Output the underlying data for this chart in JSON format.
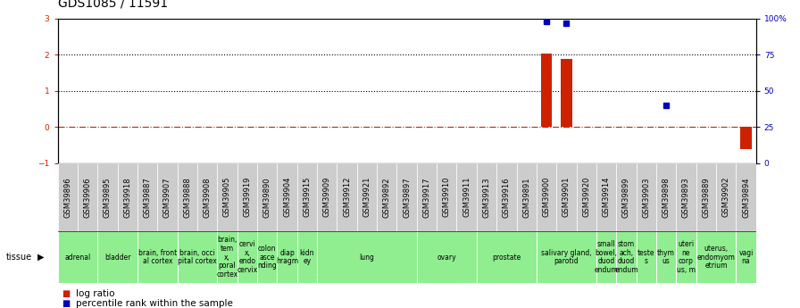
{
  "title": "GDS1085 / 11591",
  "samples": [
    "GSM39896",
    "GSM39906",
    "GSM39895",
    "GSM39918",
    "GSM39887",
    "GSM39907",
    "GSM39888",
    "GSM39908",
    "GSM39905",
    "GSM39919",
    "GSM39890",
    "GSM39904",
    "GSM39915",
    "GSM39909",
    "GSM39912",
    "GSM39921",
    "GSM39892",
    "GSM39897",
    "GSM39917",
    "GSM39910",
    "GSM39911",
    "GSM39913",
    "GSM39916",
    "GSM39891",
    "GSM39900",
    "GSM39901",
    "GSM39920",
    "GSM39914",
    "GSM39899",
    "GSM39903",
    "GSM39898",
    "GSM39893",
    "GSM39889",
    "GSM39902",
    "GSM39894"
  ],
  "log_ratio": {
    "GSM39900": 2.02,
    "GSM39901": 1.88,
    "GSM39894": -0.62
  },
  "percentile_rank": {
    "GSM39900": 98,
    "GSM39901": 97,
    "GSM39898": 40
  },
  "tissues": [
    {
      "label": "adrenal",
      "samples": [
        "GSM39896",
        "GSM39906"
      ]
    },
    {
      "label": "bladder",
      "samples": [
        "GSM39895",
        "GSM39918"
      ]
    },
    {
      "label": "brain, front\nal cortex",
      "samples": [
        "GSM39887",
        "GSM39907"
      ]
    },
    {
      "label": "brain, occi\npital cortex",
      "samples": [
        "GSM39888",
        "GSM39908"
      ]
    },
    {
      "label": "brain,\ntem\nx,\nporal\ncortex",
      "samples": [
        "GSM39905"
      ]
    },
    {
      "label": "cervi\nx,\nendo\ncervix",
      "samples": [
        "GSM39919"
      ]
    },
    {
      "label": "colon\nasce\nnding",
      "samples": [
        "GSM39890"
      ]
    },
    {
      "label": "diap\nhragm",
      "samples": [
        "GSM39904"
      ]
    },
    {
      "label": "kidn\ney",
      "samples": [
        "GSM39915"
      ]
    },
    {
      "label": "lung",
      "samples": [
        "GSM39909",
        "GSM39912",
        "GSM39921",
        "GSM39892",
        "GSM39897"
      ]
    },
    {
      "label": "ovary",
      "samples": [
        "GSM39917",
        "GSM39910",
        "GSM39911"
      ]
    },
    {
      "label": "prostate",
      "samples": [
        "GSM39913",
        "GSM39916",
        "GSM39891"
      ]
    },
    {
      "label": "salivary gland,\nparotid",
      "samples": [
        "GSM39900",
        "GSM39901",
        "GSM39920"
      ]
    },
    {
      "label": "small\nbowel,\nduod\nendum",
      "samples": [
        "GSM39914"
      ]
    },
    {
      "label": "stom\nach,\nduod\nendum",
      "samples": [
        "GSM39899"
      ]
    },
    {
      "label": "teste\ns",
      "samples": [
        "GSM39903"
      ]
    },
    {
      "label": "thym\nus",
      "samples": [
        "GSM39898"
      ]
    },
    {
      "label": "uteri\nne\ncorp\nus, m",
      "samples": [
        "GSM39893"
      ]
    },
    {
      "label": "uterus,\nendomyom\netrium",
      "samples": [
        "GSM39889",
        "GSM39902"
      ]
    },
    {
      "label": "vagi\nna",
      "samples": [
        "GSM39894"
      ]
    }
  ],
  "ylim_left": [
    -1,
    3
  ],
  "ylim_right": [
    0,
    100
  ],
  "yticks_left": [
    -1,
    0,
    1,
    2,
    3
  ],
  "yticks_right": [
    0,
    25,
    50,
    75,
    100
  ],
  "bar_color": "#CC2200",
  "dot_color": "#0000BB",
  "background_color": "#ffffff",
  "xlabel_bg": "#cccccc",
  "green_color": "#90EE90",
  "title_fontsize": 10,
  "tick_fontsize": 6.5,
  "gsm_fontsize": 6,
  "tissue_fontsize": 5.5,
  "legend_fontsize": 7.5
}
